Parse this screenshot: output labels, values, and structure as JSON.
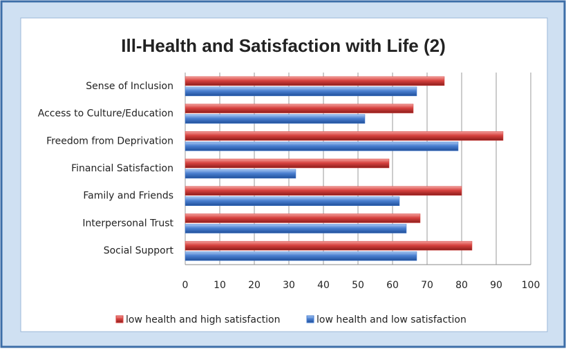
{
  "chart_data": {
    "type": "hbar",
    "title": "Ill-Health and Satisfaction with Life (2)",
    "categories": [
      "Sense of Inclusion",
      "Access to Culture/Education",
      "Freedom from Deprivation",
      "Financial Satisfaction",
      "Family and Friends",
      "Interpersonal Trust",
      "Social Support"
    ],
    "series": [
      {
        "name": "low health and high satisfaction",
        "color": "#d7423f",
        "values": [
          75,
          66,
          92,
          59,
          80,
          68,
          83
        ]
      },
      {
        "name": "low health and low satisfaction",
        "color": "#4a7fd0",
        "values": [
          67,
          52,
          79,
          32,
          62,
          64,
          67
        ]
      }
    ],
    "xlim": [
      0,
      100
    ],
    "xticks": [
      0,
      10,
      20,
      30,
      40,
      50,
      60,
      70,
      80,
      90,
      100
    ],
    "grid": true,
    "legend": "bottom"
  }
}
